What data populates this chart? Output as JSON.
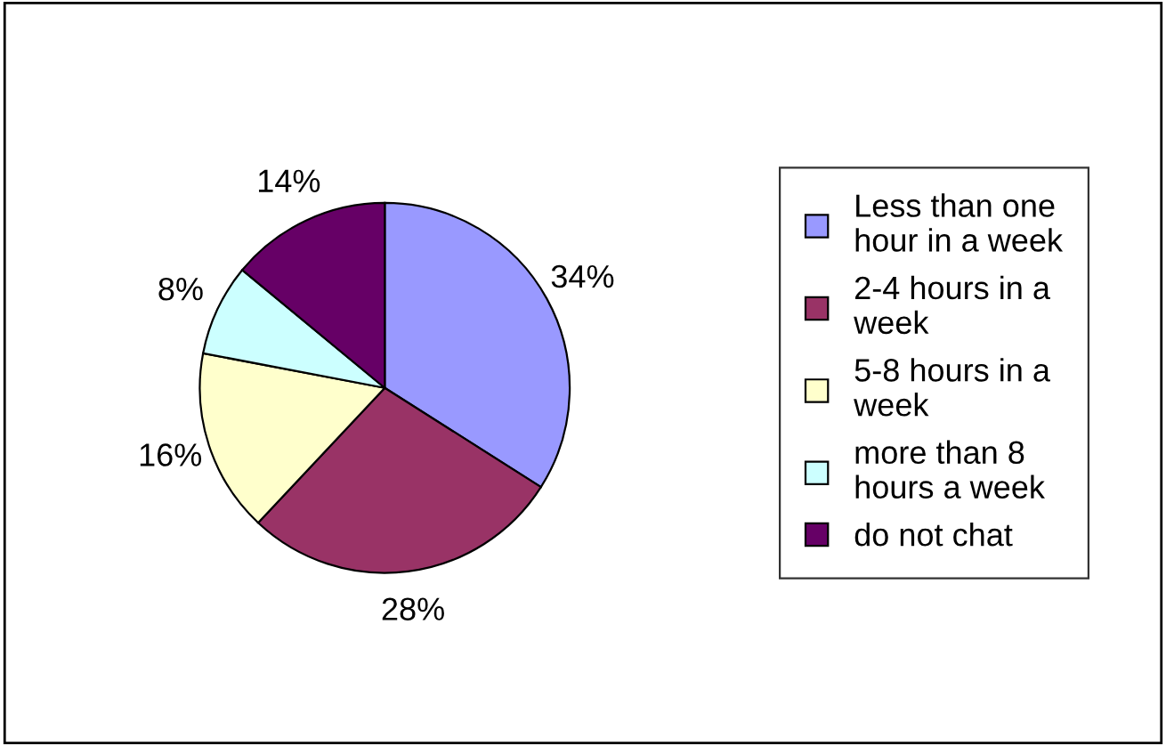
{
  "chart_data": {
    "type": "pie",
    "categories": [
      "Less than one\nhour in a week",
      "2-4 hours in a\nweek",
      "5-8 hours in a\nweek",
      "more than 8\nhours a week",
      "do not chat"
    ],
    "values": [
      34,
      28,
      16,
      8,
      14
    ],
    "colors": [
      "#9999ff",
      "#993366",
      "#ffffcc",
      "#ccffff",
      "#660066"
    ],
    "value_labels": [
      "34%",
      "28%",
      "16%",
      "8%",
      "14%"
    ],
    "legend": "right"
  }
}
